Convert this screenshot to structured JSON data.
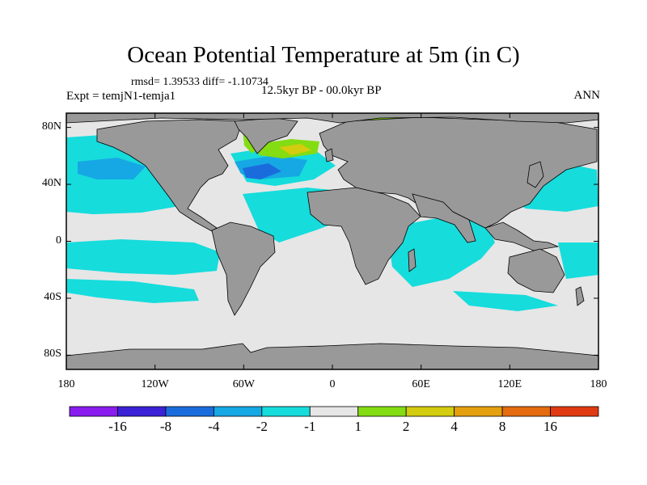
{
  "header": {
    "title": "Ocean Potential Temperature at 5m (in C)",
    "stats": "rmsd= 1.39533  diff= -1.10734",
    "expt": "Expt = temjN1-temja1",
    "period": "12.5kyr BP - 00.0kyr BP",
    "season": "ANN"
  },
  "axes": {
    "y_ticks": [
      {
        "lat": 80,
        "label": "80N"
      },
      {
        "lat": 40,
        "label": "40N"
      },
      {
        "lat": 0,
        "label": "0"
      },
      {
        "lat": -40,
        "label": "40S"
      },
      {
        "lat": -80,
        "label": "80S"
      }
    ],
    "x_ticks": [
      {
        "lon": -180,
        "label": "180"
      },
      {
        "lon": -120,
        "label": "120W"
      },
      {
        "lon": -60,
        "label": "60W"
      },
      {
        "lon": 0,
        "label": "0"
      },
      {
        "lon": 60,
        "label": "60E"
      },
      {
        "lon": 120,
        "label": "120E"
      },
      {
        "lon": 180,
        "label": "180"
      }
    ],
    "lon_range": [
      -180,
      180
    ],
    "lat_range": [
      -90,
      90
    ]
  },
  "colorbar": {
    "colors": [
      "#8a1cf0",
      "#3b22d6",
      "#1a6cdc",
      "#16a8e4",
      "#16dcdc",
      "#e6e6e6",
      "#84dc12",
      "#d4cc0e",
      "#e4a00e",
      "#e46c0e",
      "#e03a12"
    ],
    "labels": [
      "-16",
      "-8",
      "-4",
      "-2",
      "-1",
      "1",
      "2",
      "4",
      "8",
      "16"
    ]
  },
  "legend_colors": {
    "land": "#999999",
    "neutral": "#e6e6e6",
    "cool1": "#16dcdc",
    "cool2": "#16a8e4",
    "cool3": "#1a6cdc",
    "cool4": "#3b22d6",
    "warm1": "#84dc12",
    "warm2": "#d4cc0e"
  }
}
